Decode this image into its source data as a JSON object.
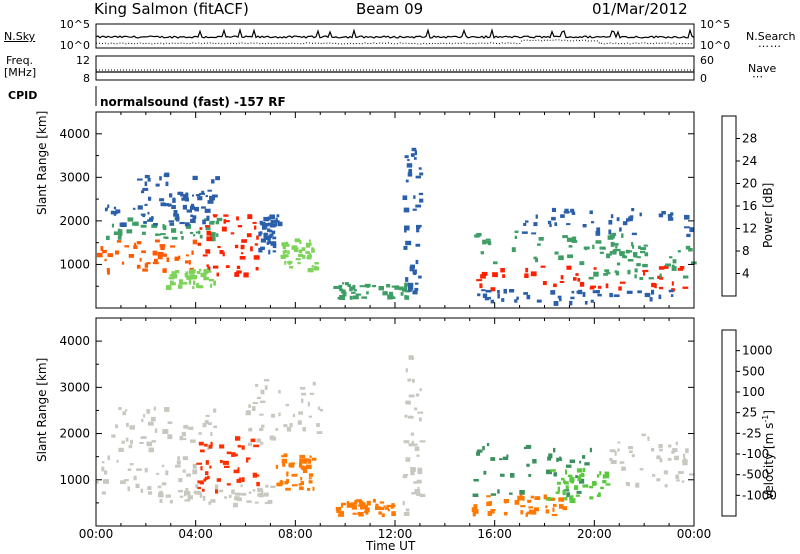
{
  "header": {
    "station": "King Salmon (fitACF)",
    "beam": "Beam 09",
    "date": "01/Mar/2012"
  },
  "top_panel_labels": {
    "nsky": "N.Sky",
    "nsearch": "N.Search",
    "freq_line1": "Freq.",
    "freq_line2": "[MHz]",
    "nave": "Nave",
    "cpid": "CPID",
    "cpid_value": "normalsound (fast) -157 RF"
  },
  "chart_data": [
    {
      "type": "line",
      "name": "noise",
      "yscale": "log",
      "left_ticks": [
        "10^5",
        "10^0"
      ],
      "right_ticks": [
        "10^5",
        "10^0"
      ]
    },
    {
      "type": "line",
      "name": "frequency",
      "left_ticks": [
        "12",
        "8"
      ],
      "right_ticks": [
        "60",
        "0"
      ]
    },
    {
      "type": "heatmap",
      "name": "power",
      "ylabel": "Slant Range [km]",
      "ylim": [
        0,
        4500
      ],
      "yticks": [
        1000,
        2000,
        3000,
        4000
      ],
      "xlim": [
        0,
        24
      ],
      "colorbar": {
        "label": "Power [dB]",
        "ticks": [
          "28",
          "24",
          "20",
          "16",
          "12",
          "8",
          "4"
        ],
        "colors": [
          "#ff0000",
          "#ff4a00",
          "#ff9000",
          "#ffd200",
          "#7ed35a",
          "#3f9e66",
          "#2b5faa",
          "#0000ff"
        ]
      }
    },
    {
      "type": "heatmap",
      "name": "velocity",
      "ylabel": "Slant Range [km]",
      "ylim": [
        0,
        4500
      ],
      "yticks": [
        1000,
        2000,
        3000,
        4000
      ],
      "xlim": [
        0,
        24
      ],
      "xlabel": "Time UT",
      "xticks": [
        "00:00",
        "04:00",
        "08:00",
        "12:00",
        "16:00",
        "20:00",
        "00:00"
      ],
      "colorbar": {
        "label": "Velocity [m s",
        "label_sup": "-1",
        "label_end": "]",
        "ticks": [
          "1000",
          "500",
          "100",
          "25",
          "-25",
          "-100",
          "-500",
          "-1000"
        ],
        "colors": [
          "#1e3cc8",
          "#3c70b4",
          "#3c9060",
          "#5ac83c",
          "#c8c8c0",
          "#ffa030",
          "#ff7800",
          "#ff3000",
          "#ff0000"
        ]
      }
    }
  ],
  "echo_regions": {
    "power": [
      {
        "t0": 0.0,
        "t1": 4.0,
        "r0": 850,
        "r1": 1600,
        "c": "#ff5a00"
      },
      {
        "t0": 0.0,
        "t1": 5.0,
        "r0": 1600,
        "r1": 2100,
        "c": "#3f9e66"
      },
      {
        "t0": 0.2,
        "t1": 4.5,
        "r0": 1950,
        "r1": 2400,
        "c": "#2b5faa"
      },
      {
        "t0": 1.5,
        "t1": 4.8,
        "r0": 2300,
        "r1": 3200,
        "c": "#2b5faa"
      },
      {
        "t0": 4.0,
        "t1": 6.5,
        "r0": 800,
        "r1": 2200,
        "c": "#ff2000"
      },
      {
        "t0": 6.5,
        "t1": 7.3,
        "r0": 1300,
        "r1": 2200,
        "c": "#2b5faa"
      },
      {
        "t0": 7.3,
        "t1": 8.8,
        "r0": 900,
        "r1": 1600,
        "c": "#7ed35a"
      },
      {
        "t0": 2.8,
        "t1": 4.8,
        "r0": 500,
        "r1": 900,
        "c": "#7ed35a"
      },
      {
        "t0": 9.5,
        "t1": 12.5,
        "r0": 250,
        "r1": 600,
        "c": "#3f9e66"
      },
      {
        "t0": 15.0,
        "t1": 22.0,
        "r0": 1000,
        "r1": 1800,
        "c": "#3f9e66"
      },
      {
        "t0": 15.2,
        "t1": 23.8,
        "r0": 400,
        "r1": 1000,
        "c": "#ff2000"
      },
      {
        "t0": 17.0,
        "t1": 24.0,
        "r0": 1700,
        "r1": 2300,
        "c": "#2b5faa"
      },
      {
        "t0": 19.5,
        "t1": 24.0,
        "r0": 700,
        "r1": 1500,
        "c": "#3f9e66"
      },
      {
        "t0": 15.0,
        "t1": 23.5,
        "r0": 150,
        "r1": 450,
        "c": "#2b5faa"
      },
      {
        "t0": 12.3,
        "t1": 13.0,
        "r0": 300,
        "r1": 3700,
        "c": "#2b5faa"
      }
    ],
    "velocity": [
      {
        "t0": 0.0,
        "t1": 4.0,
        "r0": 700,
        "r1": 1700,
        "c": "#c8c8c0"
      },
      {
        "t0": 0.5,
        "t1": 4.8,
        "r0": 1700,
        "r1": 2600,
        "c": "#c8c8c0"
      },
      {
        "t0": 4.0,
        "t1": 6.5,
        "r0": 800,
        "r1": 2000,
        "c": "#ff3000"
      },
      {
        "t0": 7.2,
        "t1": 8.8,
        "r0": 800,
        "r1": 1600,
        "c": "#ff7800"
      },
      {
        "t0": 2.5,
        "t1": 7.0,
        "r0": 500,
        "r1": 900,
        "c": "#c8c8c0"
      },
      {
        "t0": 6.0,
        "t1": 9.0,
        "r0": 1800,
        "r1": 3200,
        "c": "#c8c8c0"
      },
      {
        "t0": 9.5,
        "t1": 12.0,
        "r0": 250,
        "r1": 600,
        "c": "#ff7800"
      },
      {
        "t0": 15.0,
        "t1": 20.0,
        "r0": 700,
        "r1": 1800,
        "c": "#3c9060"
      },
      {
        "t0": 18.0,
        "t1": 20.5,
        "r0": 600,
        "r1": 1300,
        "c": "#5ac83c"
      },
      {
        "t0": 20.5,
        "t1": 24.0,
        "r0": 900,
        "r1": 2000,
        "c": "#c8c8c0"
      },
      {
        "t0": 15.0,
        "t1": 19.0,
        "r0": 250,
        "r1": 700,
        "c": "#ff7800"
      },
      {
        "t0": 12.3,
        "t1": 13.0,
        "r0": 300,
        "r1": 3700,
        "c": "#c8c8c0"
      }
    ]
  }
}
